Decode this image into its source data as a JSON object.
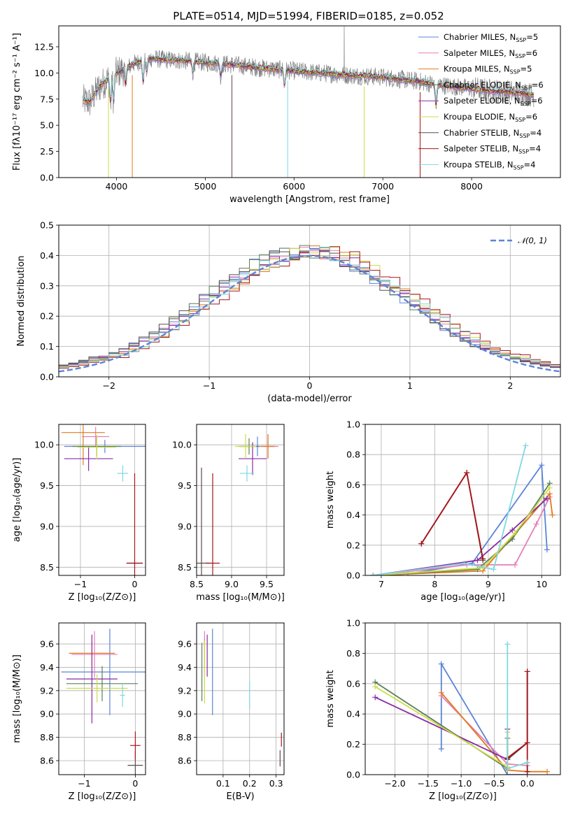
{
  "figure": {
    "title": "PLATE=0514, MJD=51994, FIBERID=0185, z=0.052"
  },
  "colors": [
    "#5b84d9",
    "#e57fb8",
    "#e07b1e",
    "#5b7f5b",
    "#8b2aa4",
    "#ccdd44",
    "#5f4a4a",
    "#a8141a",
    "#7fd8e0"
  ],
  "chart_data": [
    {
      "id": "spectrum",
      "type": "line",
      "xlabel": "wavelength [Angstrom, rest frame]",
      "ylabel": "Flux [fλ10⁻¹⁷ erg cm⁻² s⁻¹ A⁻¹]",
      "xlim": [
        3350,
        9000
      ],
      "ylim": [
        0,
        14.5
      ],
      "xticks": [
        4000,
        5000,
        6000,
        7000,
        8000
      ],
      "yticks": [
        0.0,
        2.5,
        5.0,
        7.5,
        10.0,
        12.5
      ],
      "grid": false,
      "legend_position": "upper-right",
      "observed_color": "#808080",
      "model_continuum": {
        "x": [
          3600,
          3700,
          3800,
          3900,
          4000,
          4100,
          4200,
          4300,
          4400,
          4500,
          4700,
          5000,
          5300,
          5600,
          6000,
          6300,
          6600,
          6800,
          7000,
          7200,
          7400,
          7600,
          7800,
          8000,
          8200,
          8400,
          8600,
          8700
        ],
        "y": [
          7.4,
          7.2,
          8.6,
          9.4,
          10.0,
          10.4,
          10.9,
          11.2,
          11.4,
          11.3,
          11.2,
          11.0,
          10.8,
          10.5,
          10.2,
          10.0,
          9.8,
          9.7,
          9.6,
          9.4,
          9.2,
          8.9,
          8.7,
          8.5,
          8.3,
          8.2,
          8.0,
          7.9
        ]
      },
      "series": [
        {
          "name": "Chabrier MILES, N",
          "sub": "SSP",
          "suffix": "=5"
        },
        {
          "name": "Salpeter MILES, N",
          "sub": "SSP",
          "suffix": "=6"
        },
        {
          "name": "Kroupa MILES, N",
          "sub": "SSP",
          "suffix": "=5"
        },
        {
          "name": "Chabrier ELODIE, N",
          "sub": "SSP",
          "suffix": "=6"
        },
        {
          "name": "Salpeter ELODIE, N",
          "sub": "SSP",
          "suffix": "=6"
        },
        {
          "name": "Kroupa ELODIE, N",
          "sub": "SSP",
          "suffix": "=6"
        },
        {
          "name": "Chabrier STELIB, N",
          "sub": "SSP",
          "suffix": "=4"
        },
        {
          "name": "Salpeter STELIB, N",
          "sub": "SSP",
          "suffix": "=4"
        },
        {
          "name": "Kroupa STELIB, N",
          "sub": "SSP",
          "suffix": "=4"
        }
      ]
    },
    {
      "id": "residuals",
      "type": "bar",
      "xlabel": "(data-model)/error",
      "ylabel": "Normed distribution",
      "xlim": [
        -2.5,
        2.5
      ],
      "ylim": [
        0,
        0.5
      ],
      "xticks": [
        -2,
        -1,
        0,
        1,
        2
      ],
      "yticks": [
        0.0,
        0.1,
        0.2,
        0.3,
        0.4,
        0.5
      ],
      "grid": true,
      "legend_position": "upper-right",
      "legend_label": "𝒩(0, 1)",
      "bin_width": 0.1,
      "bins_from": -2.5
    },
    {
      "id": "age-vs-Z",
      "type": "scatter",
      "xlabel": "Z [log₁₀(Z/Z⊙)]",
      "ylabel": "age  [log₁₀(age/yr)]",
      "xlim": [
        -1.4,
        0.2
      ],
      "ylim": [
        8.4,
        10.25
      ],
      "xticks": [
        -1,
        0
      ],
      "yticks": [
        8.5,
        9.0,
        9.5,
        10.0
      ],
      "grid": true,
      "points": [
        {
          "x": -0.55,
          "xerr": 0.75,
          "y": 9.98,
          "yerr": 0.08
        },
        {
          "x": -0.72,
          "xerr": 0.25,
          "y": 10.1,
          "yerr": 0.12
        },
        {
          "x": -0.95,
          "xerr": 0.4,
          "y": 10.15,
          "yerr": 0.4
        },
        {
          "x": -0.7,
          "xerr": 0.45,
          "y": 9.98,
          "yerr": 0.12
        },
        {
          "x": -0.85,
          "xerr": 0.45,
          "y": 9.83,
          "yerr": 0.15
        },
        {
          "x": -0.7,
          "xerr": 0.35,
          "y": 9.97,
          "yerr": 0.15
        },
        {
          "x": 0.0,
          "xerr": 0.15,
          "y": 8.55,
          "yerr": 0.01
        },
        {
          "x": 0.0,
          "xerr": 0.15,
          "y": 8.55,
          "yerr": 1.1
        },
        {
          "x": -0.22,
          "xerr": 0.1,
          "y": 9.65,
          "yerr": 0.1
        }
      ]
    },
    {
      "id": "age-vs-mass",
      "type": "scatter",
      "xlabel": "mass [log₁₀(M/M⊙)]",
      "ylabel": "",
      "xlim": [
        8.5,
        9.75
      ],
      "ylim": [
        8.4,
        10.25
      ],
      "xticks": [
        8.5,
        9.0,
        9.5
      ],
      "yticks": [
        8.5,
        9.0,
        9.5,
        10.0
      ],
      "grid": true,
      "points": [
        {
          "x": 9.37,
          "xerr": 0.25,
          "y": 9.98,
          "yerr": 0.12
        },
        {
          "x": 9.52,
          "xerr": 0.15,
          "y": 9.98,
          "yerr": 0.15
        },
        {
          "x": 9.52,
          "xerr": 0.1,
          "y": 9.98,
          "yerr": 0.15
        },
        {
          "x": 9.25,
          "xerr": 0.15,
          "y": 9.98,
          "yerr": 0.1
        },
        {
          "x": 9.3,
          "xerr": 0.2,
          "y": 9.83,
          "yerr": 0.2
        },
        {
          "x": 9.2,
          "xerr": 0.15,
          "y": 9.98,
          "yerr": 0.15
        },
        {
          "x": 8.57,
          "xerr": 0.12,
          "y": 8.55,
          "yerr": 1.17
        },
        {
          "x": 8.73,
          "xerr": 0.1,
          "y": 8.55,
          "yerr": 1.1
        },
        {
          "x": 9.22,
          "xerr": 0.1,
          "y": 9.65,
          "yerr": 0.1
        }
      ]
    },
    {
      "id": "mass-weight-vs-age",
      "type": "line",
      "xlabel": "age  [log₁₀(age/yr)]",
      "ylabel": "mass weight",
      "xlim": [
        6.7,
        10.35
      ],
      "ylim": [
        0,
        1
      ],
      "xticks": [
        7,
        8,
        9,
        10
      ],
      "yticks": [
        0.0,
        0.2,
        0.4,
        0.6,
        0.8,
        1.0
      ],
      "grid": true,
      "series_points": [
        {
          "x": [
            6.85,
            7.5,
            8.7,
            10.0,
            10.1
          ],
          "y": [
            0.0,
            0.01,
            0.08,
            0.73,
            0.17
          ]
        },
        {
          "x": [
            6.85,
            8.6,
            9.5,
            9.9,
            10.15
          ],
          "y": [
            0.0,
            0.07,
            0.07,
            0.34,
            0.52
          ]
        },
        {
          "x": [
            6.85,
            8.9,
            10.15,
            10.2
          ],
          "y": [
            0.0,
            0.03,
            0.54,
            0.4
          ]
        },
        {
          "x": [
            6.85,
            8.8,
            9.45,
            10.15
          ],
          "y": [
            0.0,
            0.04,
            0.24,
            0.61
          ]
        },
        {
          "x": [
            6.85,
            8.8,
            9.45,
            10.1
          ],
          "y": [
            0.0,
            0.1,
            0.3,
            0.51
          ]
        },
        {
          "x": [
            6.85,
            8.9,
            9.5,
            10.15
          ],
          "y": [
            0.0,
            0.05,
            0.28,
            0.58
          ]
        },
        {
          "x": [
            7.75,
            8.6,
            8.9
          ],
          "y": [
            0.21,
            0.68,
            0.1
          ]
        },
        {
          "x": [
            7.75,
            8.6,
            8.9
          ],
          "y": [
            0.21,
            0.68,
            0.11
          ]
        },
        {
          "x": [
            6.85,
            8.55,
            9.1,
            9.7
          ],
          "y": [
            0.0,
            0.08,
            0.04,
            0.86
          ]
        }
      ]
    },
    {
      "id": "mass-vs-Z",
      "type": "scatter",
      "xlabel": "Z [log₁₀(Z/Z⊙)]",
      "ylabel": "mass [log₁₀(M/M⊙)]",
      "xlim": [
        -1.5,
        0.2
      ],
      "ylim": [
        8.48,
        9.78
      ],
      "xticks": [
        -1,
        0
      ],
      "yticks": [
        8.6,
        8.8,
        9.0,
        9.2,
        9.4,
        9.6
      ],
      "grid": true,
      "points": [
        {
          "x": -0.5,
          "xerr": 0.95,
          "y": 9.36,
          "yerr": 0.37
        },
        {
          "x": -0.8,
          "xerr": 0.45,
          "y": 9.51,
          "yerr": 0.2
        },
        {
          "x": -0.85,
          "xerr": 0.45,
          "y": 9.52,
          "yerr": 0.1
        },
        {
          "x": -0.65,
          "xerr": 0.7,
          "y": 9.26,
          "yerr": 0.15
        },
        {
          "x": -0.85,
          "xerr": 0.5,
          "y": 9.3,
          "yerr": 0.38
        },
        {
          "x": -0.75,
          "xerr": 0.6,
          "y": 9.22,
          "yerr": 0.12
        },
        {
          "x": 0.0,
          "xerr": 0.15,
          "y": 8.56,
          "yerr": 0.12
        },
        {
          "x": 0.0,
          "xerr": 0.1,
          "y": 8.73,
          "yerr": 0.12
        },
        {
          "x": -0.25,
          "xerr": 0.05,
          "y": 9.16,
          "yerr": 0.1
        }
      ]
    },
    {
      "id": "mass-vs-EBV",
      "type": "scatter",
      "xlabel": "E(B-V)",
      "ylabel": "",
      "xlim": [
        0.0,
        0.33
      ],
      "ylim": [
        8.48,
        9.78
      ],
      "xticks": [
        0.1,
        0.2,
        0.3
      ],
      "yticks": [
        8.6,
        8.8,
        9.0,
        9.2,
        9.4,
        9.6
      ],
      "grid": true,
      "points": [
        {
          "x": 0.06,
          "xerr": 0.0,
          "y": 9.36,
          "yerr": 0.37
        },
        {
          "x": 0.03,
          "xerr": 0.0,
          "y": 9.51,
          "yerr": 0.2
        },
        {
          "x": 0.03,
          "xerr": 0.0,
          "y": 9.52,
          "yerr": 0.12
        },
        {
          "x": 0.02,
          "xerr": 0.0,
          "y": 9.36,
          "yerr": 0.25
        },
        {
          "x": 0.04,
          "xerr": 0.0,
          "y": 9.5,
          "yerr": 0.18
        },
        {
          "x": 0.03,
          "xerr": 0.0,
          "y": 9.36,
          "yerr": 0.27
        },
        {
          "x": 0.315,
          "xerr": 0.0,
          "y": 8.62,
          "yerr": 0.07
        },
        {
          "x": 0.32,
          "xerr": 0.0,
          "y": 8.78,
          "yerr": 0.06
        },
        {
          "x": 0.2,
          "xerr": 0.0,
          "y": 9.16,
          "yerr": 0.12
        }
      ]
    },
    {
      "id": "mass-weight-vs-Z",
      "type": "line",
      "xlabel": "Z [log₁₀(Z/Z⊙)]",
      "ylabel": "mass weight",
      "xlim": [
        -2.45,
        0.5
      ],
      "ylim": [
        0,
        1
      ],
      "xticks": [
        -2.0,
        -1.5,
        -1.0,
        -0.5,
        0.0
      ],
      "yticks": [
        0.0,
        0.2,
        0.4,
        0.6,
        0.8,
        1.0
      ],
      "grid": true,
      "series_points": [
        {
          "x": [
            -1.3,
            -1.3,
            -0.3,
            0.0,
            0.0
          ],
          "y": [
            0.17,
            0.73,
            0.0,
            0.0,
            0.08
          ]
        },
        {
          "x": [
            -1.3,
            -0.3,
            0.0
          ],
          "y": [
            0.52,
            0.07,
            0.06
          ]
        },
        {
          "x": [
            -1.3,
            -0.3,
            0.0,
            0.3
          ],
          "y": [
            0.54,
            0.03,
            0.02,
            0.02
          ]
        },
        {
          "x": [
            -2.3,
            -0.3,
            -0.3
          ],
          "y": [
            0.61,
            0.04,
            0.24
          ]
        },
        {
          "x": [
            -2.3,
            -0.3,
            -0.3
          ],
          "y": [
            0.51,
            0.1,
            0.3
          ]
        },
        {
          "x": [
            -2.3,
            -0.3,
            -0.3
          ],
          "y": [
            0.58,
            0.05,
            0.28
          ]
        },
        {
          "x": [
            -0.3,
            0.0,
            0.0
          ],
          "y": [
            0.1,
            0.21,
            0.68
          ]
        },
        {
          "x": [
            -0.3,
            0.0,
            0.0,
            0.0
          ],
          "y": [
            0.11,
            0.21,
            0.68,
            0.02
          ]
        },
        {
          "x": [
            -0.3,
            -0.3,
            0.0
          ],
          "y": [
            0.86,
            0.04,
            0.08
          ]
        }
      ]
    }
  ]
}
